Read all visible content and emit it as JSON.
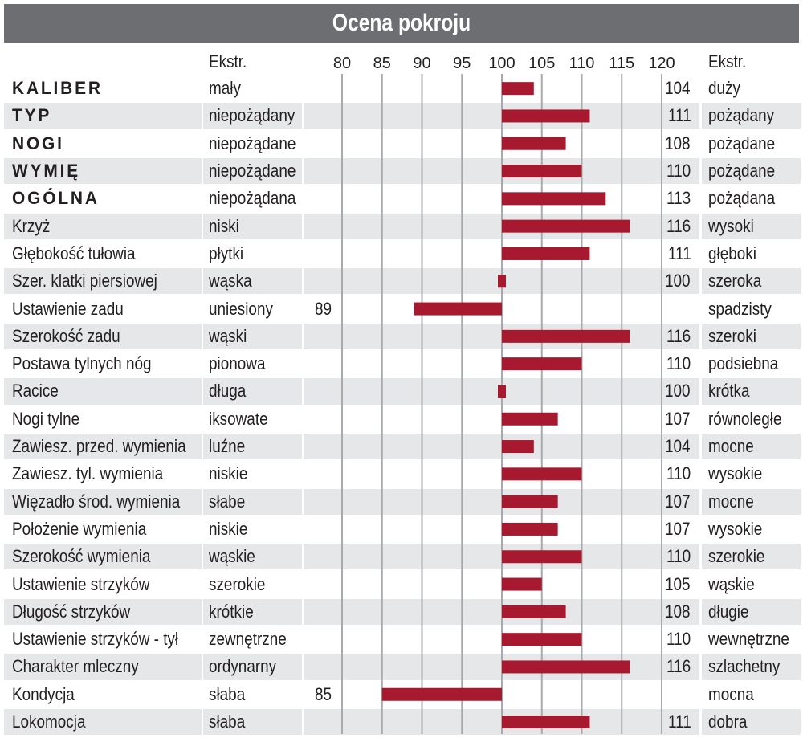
{
  "title": "Ocena pokroju",
  "header": {
    "low_label": "Ekstr.",
    "high_label": "Ekstr."
  },
  "colors": {
    "title_bg": "#6d6e71",
    "row_light": "#ffffff",
    "row_shade": "#e6e7e8",
    "bar": "#a6192e",
    "grid": "#a7a9ac"
  },
  "chart_data": {
    "type": "bar",
    "orientation": "horizontal",
    "baseline": 100,
    "xlim": [
      75,
      122
    ],
    "ticks": [
      "80",
      "85",
      "90",
      "95",
      "100",
      "105",
      "110",
      "115",
      "120"
    ],
    "grid": true,
    "rows": [
      {
        "name": "KALIBER",
        "bold": true,
        "low": "mały",
        "high": "duży",
        "value": 104
      },
      {
        "name": "TYP",
        "bold": true,
        "low": "niepożądany",
        "high": "pożądany",
        "value": 111
      },
      {
        "name": "NOGI",
        "bold": true,
        "low": "niepożądane",
        "high": "pożądane",
        "value": 108
      },
      {
        "name": "WYMIĘ",
        "bold": true,
        "low": "niepożądane",
        "high": "pożądane",
        "value": 110
      },
      {
        "name": "OGÓLNA",
        "bold": true,
        "low": "niepożądana",
        "high": "pożądana",
        "value": 113
      },
      {
        "name": "Krzyż",
        "bold": false,
        "low": "niski",
        "high": "wysoki",
        "value": 116
      },
      {
        "name": "Głębokość tułowia",
        "bold": false,
        "low": "płytki",
        "high": "głęboki",
        "value": 111
      },
      {
        "name": "Szer. klatki piersiowej",
        "bold": false,
        "low": "wąska",
        "high": "szeroka",
        "value": 100
      },
      {
        "name": "Ustawienie zadu",
        "bold": false,
        "low": "uniesiony",
        "high": "spadzisty",
        "value": 89
      },
      {
        "name": "Szerokość zadu",
        "bold": false,
        "low": "wąski",
        "high": "szeroki",
        "value": 116
      },
      {
        "name": "Postawa tylnych nóg",
        "bold": false,
        "low": "pionowa",
        "high": "podsiebna",
        "value": 110
      },
      {
        "name": "Racice",
        "bold": false,
        "low": "długa",
        "high": "krótka",
        "value": 100
      },
      {
        "name": "Nogi tylne",
        "bold": false,
        "low": "iksowate",
        "high": "równoległe",
        "value": 107
      },
      {
        "name": "Zawiesz. przed. wymienia",
        "bold": false,
        "low": "luźne",
        "high": "mocne",
        "value": 104
      },
      {
        "name": "Zawiesz. tyl. wymienia",
        "bold": false,
        "low": "niskie",
        "high": "wysokie",
        "value": 110
      },
      {
        "name": "Więzadło środ. wymienia",
        "bold": false,
        "low": "słabe",
        "high": "mocne",
        "value": 107
      },
      {
        "name": "Położenie wymienia",
        "bold": false,
        "low": "niskie",
        "high": "wysokie",
        "value": 107
      },
      {
        "name": "Szerokość wymienia",
        "bold": false,
        "low": "wąskie",
        "high": "szerokie",
        "value": 110
      },
      {
        "name": "Ustawienie strzyków",
        "bold": false,
        "low": "szerokie",
        "high": "wąskie",
        "value": 105
      },
      {
        "name": "Długość strzyków",
        "bold": false,
        "low": "krótkie",
        "high": "długie",
        "value": 108
      },
      {
        "name": "Ustawienie strzyków - tył",
        "bold": false,
        "low": "zewnętrzne",
        "high": "wewnętrzne",
        "value": 110
      },
      {
        "name": "Charakter mleczny",
        "bold": false,
        "low": "ordynarny",
        "high": "szlachetny",
        "value": 116
      },
      {
        "name": "Kondycja",
        "bold": false,
        "low": "słaba",
        "high": "mocna",
        "value": 85
      },
      {
        "name": "Lokomocja",
        "bold": false,
        "low": "słaba",
        "high": "dobra",
        "value": 111
      }
    ]
  }
}
